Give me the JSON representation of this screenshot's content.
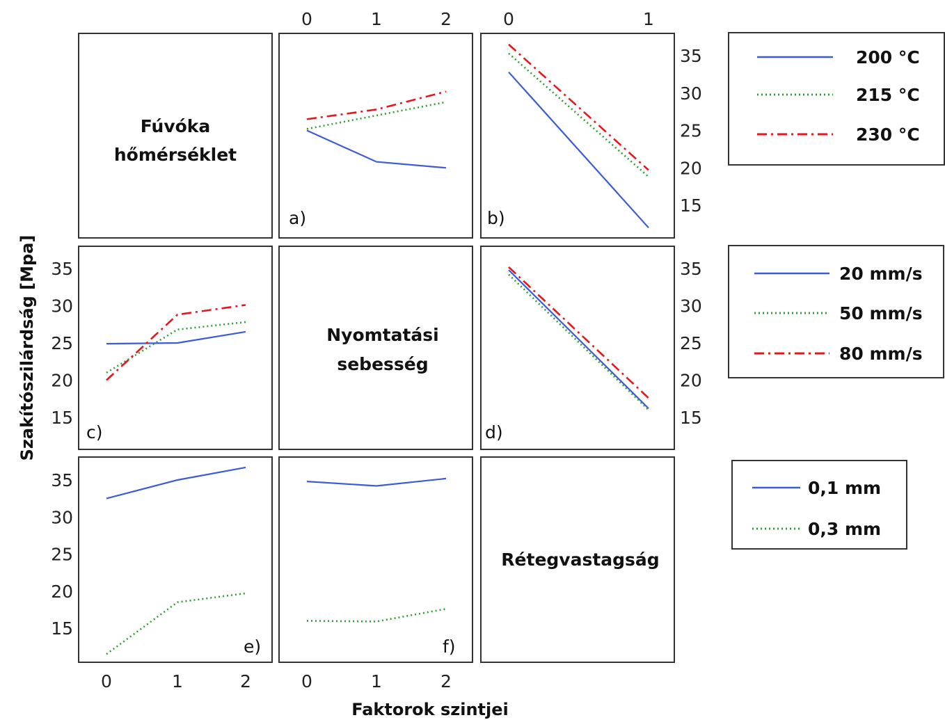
{
  "figure": {
    "ylabel": "Szakítószilárdság [Mpa]",
    "xlabel": "Faktorok szintjei"
  },
  "diagonal_titles": {
    "temperature": [
      "Fúvóka",
      "hőmérséklet"
    ],
    "speed": [
      "Nyomtatási",
      "sebesség"
    ],
    "layer": [
      "Rétegvastagság"
    ]
  },
  "legends": [
    {
      "id": "temperature",
      "entries": [
        {
          "label": "200 °C",
          "color": "#3b5bdb",
          "style": "solid"
        },
        {
          "label": "215 °C",
          "color": "#2ea02e",
          "style": "dotted"
        },
        {
          "label": "230 °C",
          "color": "#e8161b",
          "style": "dashdot"
        }
      ]
    },
    {
      "id": "speed",
      "entries": [
        {
          "label": "20 mm/s",
          "color": "#3b5bdb",
          "style": "solid"
        },
        {
          "label": "50 mm/s",
          "color": "#2ea02e",
          "style": "dotted"
        },
        {
          "label": "80 mm/s",
          "color": "#e8161b",
          "style": "dashdot"
        }
      ]
    },
    {
      "id": "layer",
      "entries": [
        {
          "label": "0,1 mm",
          "color": "#3b5bdb",
          "style": "solid"
        },
        {
          "label": "0,3 mm",
          "color": "#2ea02e",
          "style": "dotted"
        }
      ]
    }
  ],
  "chart_data": [
    {
      "panel": "a)",
      "type": "line",
      "x": [
        0,
        1,
        2
      ],
      "xticks": [
        "0",
        "1",
        "2"
      ],
      "ylim": [
        11,
        38
      ],
      "series": [
        {
          "name": "200 °C",
          "values": [
            25.0,
            20.8,
            20.0
          ]
        },
        {
          "name": "215 °C",
          "values": [
            25.2,
            27.0,
            28.8
          ]
        },
        {
          "name": "230 °C",
          "values": [
            26.5,
            27.8,
            30.2
          ]
        }
      ]
    },
    {
      "panel": "b)",
      "type": "line",
      "x": [
        0,
        1
      ],
      "xticks": [
        "0",
        "1"
      ],
      "yticks": [
        "15",
        "20",
        "25",
        "30",
        "35"
      ],
      "ylim": [
        11,
        38
      ],
      "series": [
        {
          "name": "200 °C",
          "values": [
            32.8,
            12.0
          ]
        },
        {
          "name": "215 °C",
          "values": [
            35.3,
            18.8
          ]
        },
        {
          "name": "230 °C",
          "values": [
            36.5,
            19.7
          ]
        }
      ]
    },
    {
      "panel": "c)",
      "type": "line",
      "x": [
        0,
        1,
        2
      ],
      "yticks": [
        "15",
        "20",
        "25",
        "30",
        "35"
      ],
      "ylim": [
        11,
        38
      ],
      "series": [
        {
          "name": "20 mm/s",
          "values": [
            24.9,
            25.0,
            26.5
          ]
        },
        {
          "name": "50 mm/s",
          "values": [
            21.0,
            26.8,
            27.8
          ]
        },
        {
          "name": "80 mm/s",
          "values": [
            20.0,
            28.8,
            30.1
          ]
        }
      ]
    },
    {
      "panel": "d)",
      "type": "line",
      "x": [
        0,
        1
      ],
      "yticks": [
        "15",
        "20",
        "25",
        "30",
        "35"
      ],
      "ylim": [
        11,
        38
      ],
      "series": [
        {
          "name": "20 mm/s",
          "values": [
            34.8,
            16.2
          ]
        },
        {
          "name": "50 mm/s",
          "values": [
            34.2,
            16.0
          ]
        },
        {
          "name": "80 mm/s",
          "values": [
            35.2,
            17.6
          ]
        }
      ]
    },
    {
      "panel": "e)",
      "type": "line",
      "x": [
        0,
        1,
        2
      ],
      "xticks": [
        "0",
        "1",
        "2"
      ],
      "yticks": [
        "15",
        "20",
        "25",
        "30",
        "35"
      ],
      "ylim": [
        11,
        38
      ],
      "series": [
        {
          "name": "0,1 mm",
          "values": [
            32.5,
            35.0,
            36.7
          ]
        },
        {
          "name": "0,3 mm",
          "values": [
            11.5,
            18.5,
            19.7
          ]
        }
      ]
    },
    {
      "panel": "f)",
      "type": "line",
      "x": [
        0,
        1,
        2
      ],
      "xticks": [
        "0",
        "1",
        "2"
      ],
      "ylim": [
        11,
        38
      ],
      "series": [
        {
          "name": "0,1 mm",
          "values": [
            34.8,
            34.2,
            35.2
          ]
        },
        {
          "name": "0,3 mm",
          "values": [
            16.0,
            15.9,
            17.6
          ]
        }
      ]
    }
  ]
}
